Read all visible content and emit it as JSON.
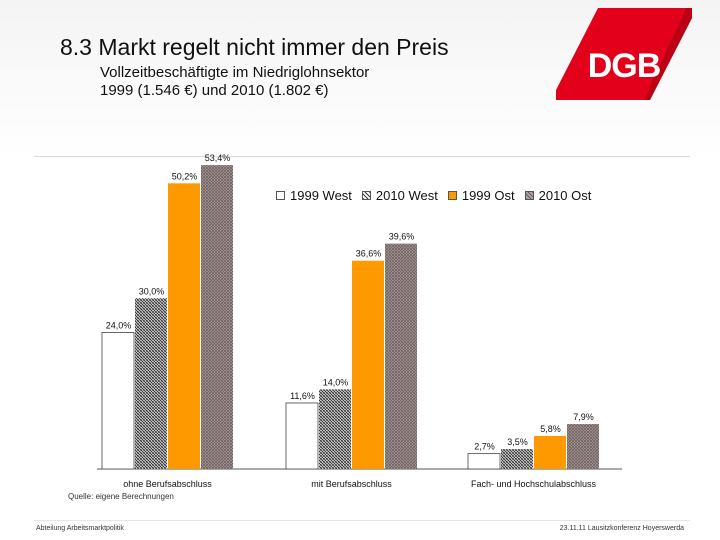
{
  "slide": {
    "title": "8.3 Markt regelt nicht immer den Preis",
    "subtitle_line1": "Vollzeitbeschäftigte im Niedriglohnsektor",
    "subtitle_line2": "1999 (1.546 €) und 2010 (1.802 €)",
    "logo_text": "DGB",
    "source": "Quelle: eigene Berechnungen",
    "footer_left": "Abteilung Arbeitsmarktpolitik",
    "footer_right": "23.11.11 Lausitzkonferenz Hoyerswerda"
  },
  "colors": {
    "brand_red": "#e3001b",
    "orange": "#ff9900",
    "west_1999": "#ffffff",
    "west_2010_pattern": "#4a4a4a",
    "ost_2010_pattern": "#8a7a7a"
  },
  "chart_data": {
    "type": "bar",
    "categories": [
      "ohne Berufsabschluss",
      "mit Berufsabschluss",
      "Fach- und Hochschulabschluss"
    ],
    "ylim": [
      0,
      55
    ],
    "legend_position": "top",
    "grid": false,
    "series": [
      {
        "name": "1999 West",
        "values": [
          24.0,
          11.6,
          2.7
        ],
        "labels": [
          "24,0%",
          "11,6%",
          "2,7%"
        ],
        "color": "#ffffff",
        "pattern": "none"
      },
      {
        "name": "2010 West",
        "values": [
          30.0,
          14.0,
          3.5
        ],
        "labels": [
          "30,0%",
          "14,0%",
          "3,5%"
        ],
        "color": "#4a4a4a",
        "pattern": "hatch-dark"
      },
      {
        "name": "1999 Ost",
        "values": [
          50.2,
          36.6,
          5.8
        ],
        "labels": [
          "50,2%",
          "36,6%",
          "5,8%"
        ],
        "color": "#ff9900",
        "pattern": "none"
      },
      {
        "name": "2010 Ost",
        "values": [
          53.4,
          39.6,
          7.9
        ],
        "labels": [
          "53,4%",
          "39,6%",
          "7,9%"
        ],
        "color": "#8a7a7a",
        "pattern": "hatch-light"
      }
    ]
  }
}
